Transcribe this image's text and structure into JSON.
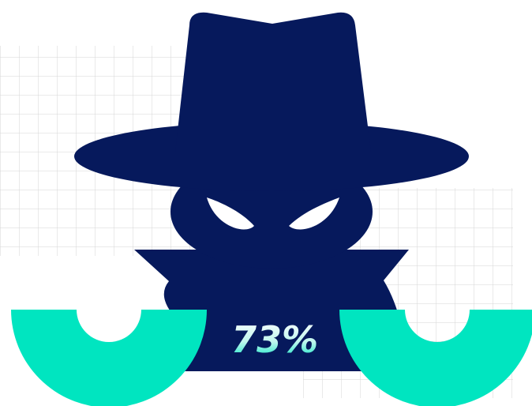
{
  "stat": {
    "value": "73%"
  },
  "colors": {
    "figure": "#06195C",
    "accent": "#00E5C0",
    "grid": "#D6D6D6",
    "background": "#FFFFFF"
  },
  "icons": [
    "spy-figure-icon",
    "hat-icon",
    "eye-icon",
    "gauge-arc-icon"
  ]
}
